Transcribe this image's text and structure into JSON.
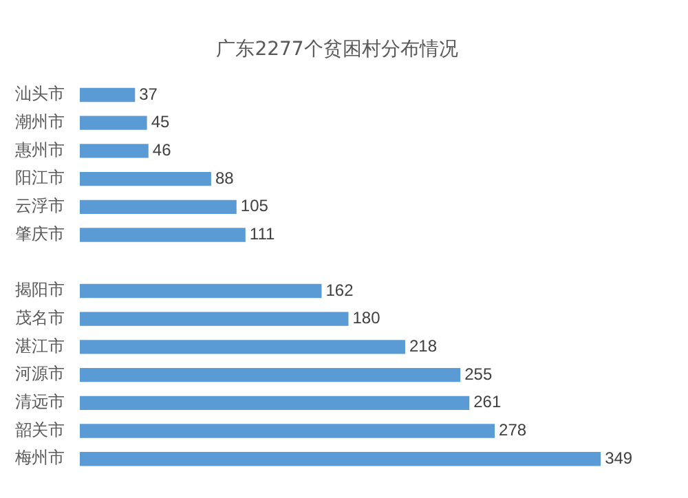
{
  "chart_data": {
    "type": "bar",
    "orientation": "horizontal",
    "title": "广东2277个贫困村分布情况",
    "categories": [
      "汕头市",
      "潮州市",
      "惠州市",
      "阳江市",
      "云浮市",
      "肇庆市",
      null,
      "揭阳市",
      "茂名市",
      "湛江市",
      "河源市",
      "清远市",
      "韶关市",
      "梅州市"
    ],
    "values": [
      37,
      45,
      46,
      88,
      105,
      111,
      null,
      162,
      180,
      218,
      255,
      261,
      278,
      349
    ],
    "color": "#5b9bd5",
    "data_labels": true
  }
}
